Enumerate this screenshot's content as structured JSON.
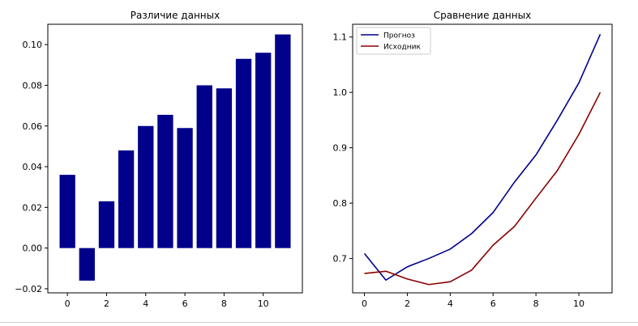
{
  "chart_data": [
    {
      "type": "bar",
      "title": "Различие данных",
      "xlabel": "",
      "ylabel": "",
      "x": [
        0,
        1,
        2,
        3,
        4,
        5,
        6,
        7,
        8,
        9,
        10,
        11
      ],
      "values": [
        0.036,
        -0.016,
        0.023,
        0.048,
        0.06,
        0.0655,
        0.059,
        0.08,
        0.0785,
        0.093,
        0.096,
        0.105
      ],
      "xlim": [
        -1,
        12
      ],
      "ylim": [
        -0.022,
        0.11
      ],
      "xticks": [
        0,
        2,
        4,
        6,
        8,
        10
      ],
      "xtick_labels": [
        "0",
        "2",
        "4",
        "6",
        "8",
        "10"
      ],
      "yticks": [
        -0.02,
        0.0,
        0.02,
        0.04,
        0.06,
        0.08,
        0.1
      ],
      "ytick_labels": [
        "−0.02",
        "0.00",
        "0.02",
        "0.04",
        "0.06",
        "0.08",
        "0.10"
      ],
      "grid": false,
      "color": "#00008b"
    },
    {
      "type": "line",
      "title": "Сравнение данных",
      "xlabel": "",
      "ylabel": "",
      "x": [
        0,
        1,
        2,
        3,
        4,
        5,
        6,
        7,
        8,
        9,
        10,
        11
      ],
      "series": [
        {
          "name": "Прогноз",
          "color": "#00008b",
          "values": [
            0.709,
            0.661,
            0.685,
            0.7,
            0.717,
            0.745,
            0.783,
            0.838,
            0.887,
            0.95,
            1.017,
            1.105
          ]
        },
        {
          "name": "Исходник",
          "color": "#8b0000",
          "values": [
            0.673,
            0.677,
            0.663,
            0.653,
            0.658,
            0.679,
            0.724,
            0.758,
            0.809,
            0.859,
            0.924,
            1.0
          ]
        }
      ],
      "xlim": [
        -0.55,
        11.55
      ],
      "ylim": [
        0.638,
        1.123
      ],
      "xticks": [
        0,
        2,
        4,
        6,
        8,
        10
      ],
      "xtick_labels": [
        "0",
        "2",
        "4",
        "6",
        "8",
        "10"
      ],
      "yticks": [
        0.7,
        0.8,
        0.9,
        1.0,
        1.1
      ],
      "ytick_labels": [
        "0.7",
        "0.8",
        "0.9",
        "1.0",
        "1.1"
      ],
      "grid": false,
      "legend": "top-left"
    }
  ]
}
